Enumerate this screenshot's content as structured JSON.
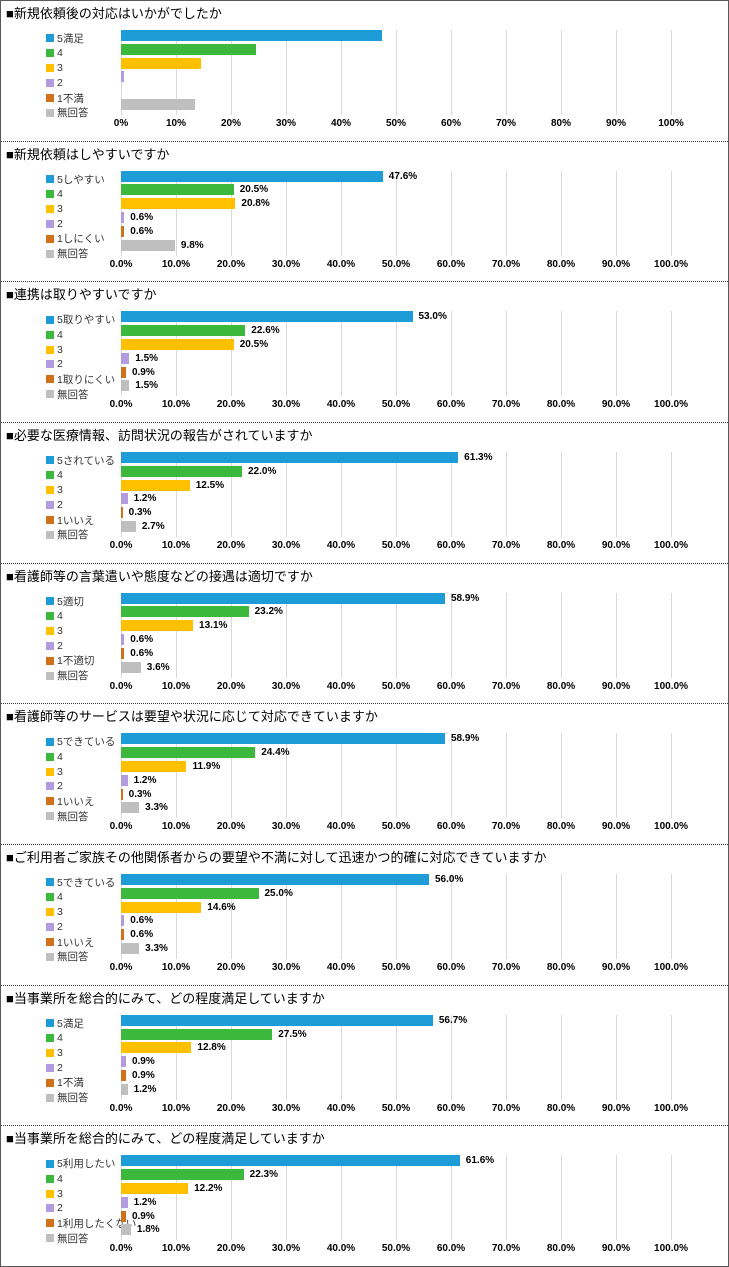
{
  "page": {
    "background": "#ffffff",
    "outer_border_color": "#595959",
    "separator_style": "dotted",
    "gridline_color": "#d9d9d9"
  },
  "chart_data": {
    "type": "bar",
    "orientation": "horizontal",
    "unit": "%",
    "xlim": [
      0,
      100
    ],
    "gridline_step": 10,
    "legend_position": "left",
    "series_colors": [
      "#1E9CD7",
      "#3CB93C",
      "#FFC000",
      "#B49BE0",
      "#D2711C",
      "#BFBFBF"
    ],
    "ticks_integer": [
      "0%",
      "10%",
      "20%",
      "30%",
      "40%",
      "50%",
      "60%",
      "70%",
      "80%",
      "90%",
      "100%"
    ],
    "ticks_decimal": [
      "0.0%",
      "10.0%",
      "20.0%",
      "30.0%",
      "40.0%",
      "50.0%",
      "60.0%",
      "70.0%",
      "80.0%",
      "90.0%",
      "100.0%"
    ],
    "charts": [
      {
        "title": "■新規依頼後の対応はいかがでしたか",
        "tick_style": "integer",
        "categories": [
          "5満足",
          "4",
          "3",
          "2",
          "1不満",
          "無回答"
        ],
        "values": [
          47.5,
          24.5,
          14.5,
          0.6,
          0,
          13.5
        ],
        "data_labels": []
      },
      {
        "title": "■新規依頼はしやすいですか",
        "tick_style": "decimal",
        "categories": [
          "5しやすい",
          "4",
          "3",
          "2",
          "1しにくい",
          "無回答"
        ],
        "values": [
          47.6,
          20.5,
          20.8,
          0.6,
          0.6,
          9.8
        ],
        "data_labels": [
          "47.6%",
          "20.5%",
          "20.8%",
          "0.6%",
          "0.6%",
          "9.8%"
        ]
      },
      {
        "title": "■連携は取りやすいですか",
        "tick_style": "decimal",
        "categories": [
          "5取りやすい",
          "4",
          "3",
          "2",
          "1取りにくい",
          "無回答"
        ],
        "values": [
          53.0,
          22.6,
          20.5,
          1.5,
          0.9,
          1.5
        ],
        "data_labels": [
          "53.0%",
          "22.6%",
          "20.5%",
          "1.5%",
          "0.9%",
          "1.5%"
        ]
      },
      {
        "title": "■必要な医療情報、訪問状況の報告がされていますか",
        "tick_style": "decimal",
        "categories": [
          "5されている",
          "4",
          "3",
          "2",
          "1いいえ",
          "無回答"
        ],
        "values": [
          61.3,
          22.0,
          12.5,
          1.2,
          0.3,
          2.7
        ],
        "data_labels": [
          "61.3%",
          "22.0%",
          "12.5%",
          "1.2%",
          "0.3%",
          "2.7%"
        ]
      },
      {
        "title": "■看護師等の言葉遣いや態度などの接遇は適切ですか",
        "tick_style": "decimal",
        "categories": [
          "5適切",
          "4",
          "3",
          "2",
          "1不適切",
          "無回答"
        ],
        "values": [
          58.9,
          23.2,
          13.1,
          0.6,
          0.6,
          3.6
        ],
        "data_labels": [
          "58.9%",
          "23.2%",
          "13.1%",
          "0.6%",
          "0.6%",
          "3.6%"
        ]
      },
      {
        "title": "■看護師等のサービスは要望や状況に応じて対応できていますか",
        "tick_style": "decimal",
        "categories": [
          "5できている",
          "4",
          "3",
          "2",
          "1いいえ",
          "無回答"
        ],
        "values": [
          58.9,
          24.4,
          11.9,
          1.2,
          0.3,
          3.3
        ],
        "data_labels": [
          "58.9%",
          "24.4%",
          "11.9%",
          "1.2%",
          "0.3%",
          "3.3%"
        ]
      },
      {
        "title": "■ご利用者ご家族その他関係者からの要望や不満に対して迅速かつ的確に対応できていますか",
        "tick_style": "decimal",
        "categories": [
          "5できている",
          "4",
          "3",
          "2",
          "1いいえ",
          "無回答"
        ],
        "values": [
          56.0,
          25.0,
          14.6,
          0.6,
          0.6,
          3.3
        ],
        "data_labels": [
          "56.0%",
          "25.0%",
          "14.6%",
          "0.6%",
          "0.6%",
          "3.3%"
        ]
      },
      {
        "title": "■当事業所を総合的にみて、どの程度満足していますか",
        "tick_style": "decimal",
        "categories": [
          "5満足",
          "4",
          "3",
          "2",
          "1不満",
          "無回答"
        ],
        "values": [
          56.7,
          27.5,
          12.8,
          0.9,
          0.9,
          1.2
        ],
        "data_labels": [
          "56.7%",
          "27.5%",
          "12.8%",
          "0.9%",
          "0.9%",
          "1.2%"
        ]
      },
      {
        "title": "■当事業所を総合的にみて、どの程度満足していますか",
        "tick_style": "decimal",
        "categories": [
          "5利用したい",
          "4",
          "3",
          "2",
          "1利用したくない",
          "無回答"
        ],
        "values": [
          61.6,
          22.3,
          12.2,
          1.2,
          0.9,
          1.8
        ],
        "data_labels": [
          "61.6%",
          "22.3%",
          "12.2%",
          "1.2%",
          "0.9%",
          "1.8%"
        ]
      }
    ]
  }
}
